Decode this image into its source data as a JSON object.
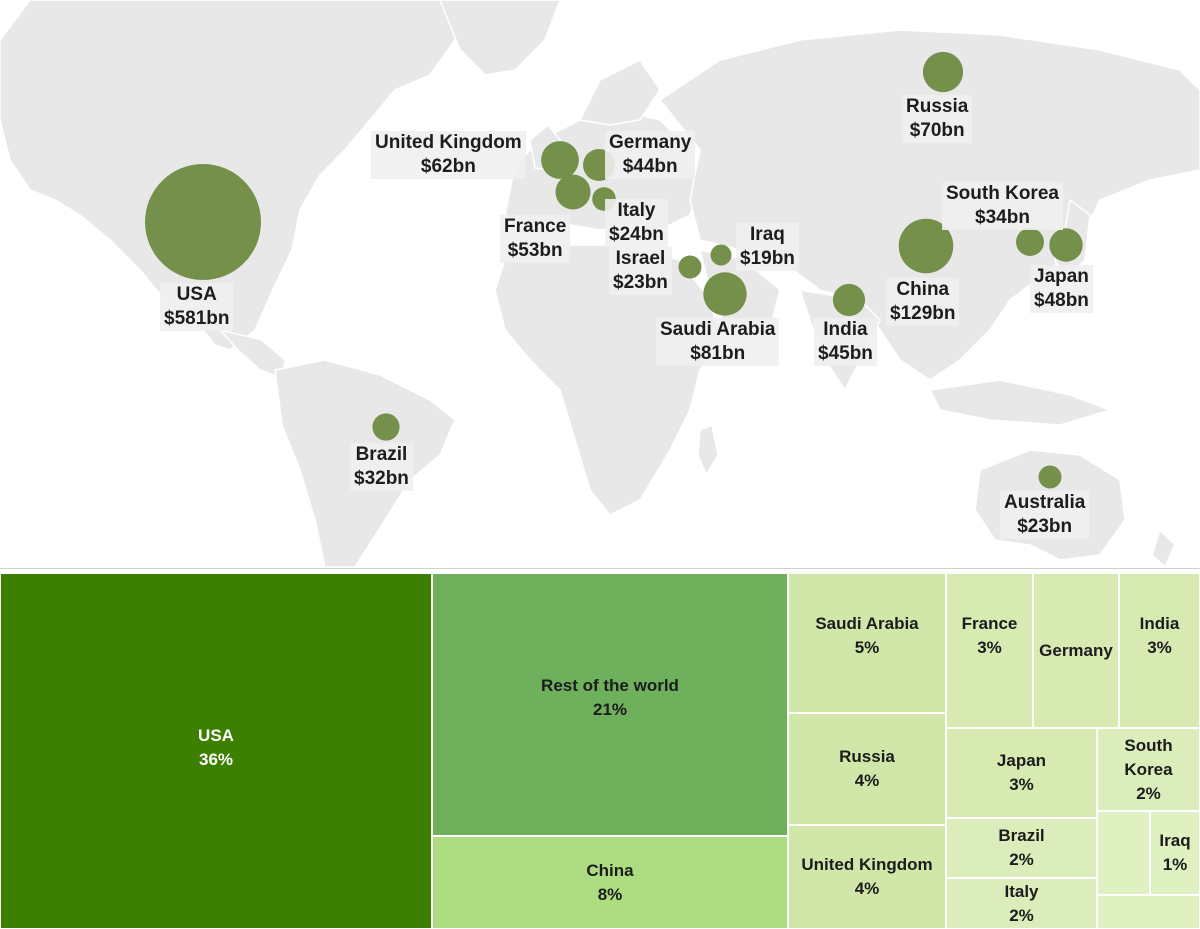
{
  "map": {
    "countries": [
      {
        "id": "usa",
        "name": "USA",
        "value": "$581bn",
        "spending": 581
      },
      {
        "id": "china",
        "name": "China",
        "value": "$129bn",
        "spending": 129
      },
      {
        "id": "saudi-arabia",
        "name": "Saudi Arabia",
        "value": "$81bn",
        "spending": 81
      },
      {
        "id": "russia",
        "name": "Russia",
        "value": "$70bn",
        "spending": 70
      },
      {
        "id": "united-kingdom",
        "name": "United Kingdom",
        "value": "$62bn",
        "spending": 62
      },
      {
        "id": "france",
        "name": "France",
        "value": "$53bn",
        "spending": 53
      },
      {
        "id": "japan",
        "name": "Japan",
        "value": "$48bn",
        "spending": 48
      },
      {
        "id": "india",
        "name": "India",
        "value": "$45bn",
        "spending": 45
      },
      {
        "id": "germany",
        "name": "Germany",
        "value": "$44bn",
        "spending": 44
      },
      {
        "id": "south-korea",
        "name": "South Korea",
        "value": "$34bn",
        "spending": 34
      },
      {
        "id": "brazil",
        "name": "Brazil",
        "value": "$32bn",
        "spending": 32
      },
      {
        "id": "italy",
        "name": "Italy",
        "value": "$24bn",
        "spending": 24
      },
      {
        "id": "israel",
        "name": "Israel",
        "value": "$23bn",
        "spending": 23
      },
      {
        "id": "australia",
        "name": "Australia",
        "value": "$23bn",
        "spending": 23
      },
      {
        "id": "iraq",
        "name": "Iraq",
        "value": "$19bn",
        "spending": 19
      }
    ]
  },
  "treemap": {
    "tiles": [
      {
        "id": "usa",
        "name": "USA",
        "percent": "36%",
        "share": 36,
        "color": "#3d7f00"
      },
      {
        "id": "rest-of-world",
        "name": "Rest of the world",
        "percent": "21%",
        "share": 21,
        "color": "#6fb05c"
      },
      {
        "id": "china",
        "name": "China",
        "percent": "8%",
        "share": 8,
        "color": "#addd80"
      },
      {
        "id": "saudi-arabia",
        "name": "Saudi Arabia",
        "percent": "5%",
        "share": 5,
        "color": "#d1e7a9"
      },
      {
        "id": "russia",
        "name": "Russia",
        "percent": "4%",
        "share": 4,
        "color": "#d1e7a9"
      },
      {
        "id": "united-kingdom",
        "name": "United Kingdom",
        "percent": "4%",
        "share": 4,
        "color": "#d1e7a9"
      },
      {
        "id": "france",
        "name": "France",
        "percent": "3%",
        "share": 3,
        "color": "#d6eab2"
      },
      {
        "id": "germany",
        "name": "Germany",
        "percent": "",
        "share": 3,
        "color": "#d6eab2"
      },
      {
        "id": "india",
        "name": "India",
        "percent": "3%",
        "share": 3,
        "color": "#d6eab2"
      },
      {
        "id": "japan",
        "name": "Japan",
        "percent": "3%",
        "share": 3,
        "color": "#d6eab2"
      },
      {
        "id": "south-korea",
        "name": "South Korea",
        "percent": "2%",
        "share": 2,
        "color": "#dbedba"
      },
      {
        "id": "brazil",
        "name": "Brazil",
        "percent": "2%",
        "share": 2,
        "color": "#dbedba"
      },
      {
        "id": "italy",
        "name": "Italy",
        "percent": "2%",
        "share": 2,
        "color": "#dbedba"
      },
      {
        "id": "iraq",
        "name": "Iraq",
        "percent": "1%",
        "share": 1,
        "color": "#dff0c1"
      },
      {
        "id": "small-1",
        "name": "",
        "percent": "",
        "share": 1,
        "color": "#dff0c1"
      },
      {
        "id": "small-2",
        "name": "",
        "percent": "",
        "share": 1,
        "color": "#dff0c1"
      }
    ]
  }
}
